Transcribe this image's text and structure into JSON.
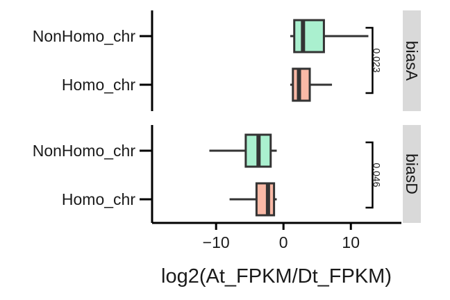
{
  "chart_data": {
    "type": "boxplot",
    "orientation": "horizontal",
    "xlabel": "log2(At_FPKM/Dt_FPKM)",
    "xlim": [
      -19.5,
      17.5
    ],
    "xticks": [
      -10,
      0,
      10
    ],
    "xtick_labels": [
      "−10",
      "0",
      "10"
    ],
    "categories": [
      "NonHomo_chr",
      "Homo_chr"
    ],
    "fill_colors": {
      "NonHomo_chr": "#aaf0cf",
      "Homo_chr": "#f9b9a6"
    },
    "panels": [
      {
        "label": "biasA",
        "pvalue": "0.023",
        "boxes": [
          {
            "category": "NonHomo_chr",
            "whisker_low": 1.0,
            "q1": 1.6,
            "median": 2.9,
            "q3": 6.0,
            "whisker_high": 12.6
          },
          {
            "category": "Homo_chr",
            "whisker_low": 1.0,
            "q1": 1.4,
            "median": 2.3,
            "q3": 3.9,
            "whisker_high": 7.2
          }
        ]
      },
      {
        "label": "biasD",
        "pvalue": "0.046",
        "boxes": [
          {
            "category": "NonHomo_chr",
            "whisker_low": -11.0,
            "q1": -5.6,
            "median": -3.7,
            "q3": -1.9,
            "whisker_high": -1.0
          },
          {
            "category": "Homo_chr",
            "whisker_low": -8.0,
            "q1": -4.0,
            "median": -2.3,
            "q3": -1.4,
            "whisker_high": -1.0
          }
        ]
      }
    ],
    "bracket_x": 12.6
  }
}
